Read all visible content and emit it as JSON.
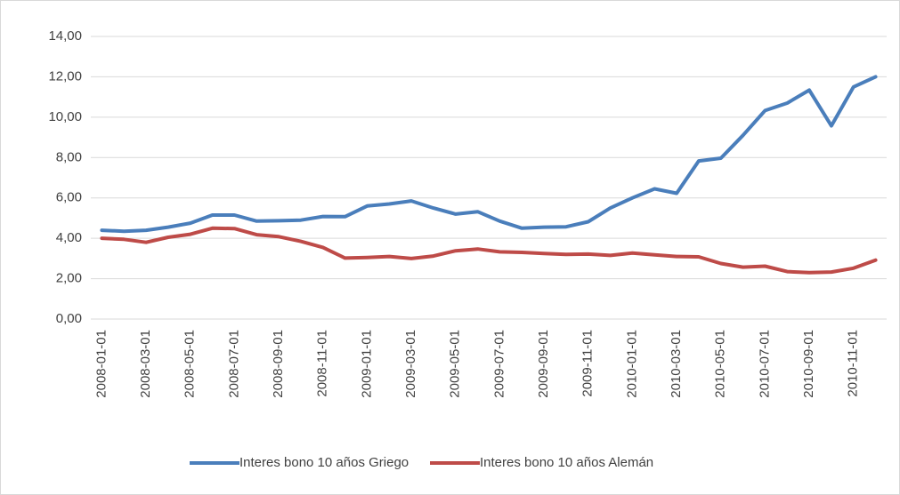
{
  "chart_data": {
    "type": "line",
    "categories": [
      "2008-01-01",
      null,
      "2008-03-01",
      null,
      "2008-05-01",
      null,
      "2008-07-01",
      null,
      "2008-09-01",
      null,
      "2008-11-01",
      null,
      "2009-01-01",
      null,
      "2009-03-01",
      null,
      "2009-05-01",
      null,
      "2009-07-01",
      null,
      "2009-09-01",
      null,
      "2009-11-01",
      null,
      "2010-01-01",
      null,
      "2010-03-01",
      null,
      "2010-05-01",
      null,
      "2010-07-01",
      null,
      "2010-09-01",
      null,
      "2010-11-01",
      null
    ],
    "series": [
      {
        "name": "Interes bono 10 años Griego",
        "color": "#4a7ebb",
        "values": [
          4.4,
          4.35,
          4.4,
          4.55,
          4.75,
          5.15,
          5.15,
          4.85,
          4.87,
          4.9,
          5.08,
          5.07,
          5.6,
          5.7,
          5.85,
          5.5,
          5.2,
          5.32,
          4.85,
          4.5,
          4.55,
          4.57,
          4.82,
          5.5,
          6.0,
          6.45,
          6.23,
          7.83,
          7.97,
          9.1,
          10.33,
          10.7,
          11.34,
          9.57,
          11.5,
          12.0
        ]
      },
      {
        "name": "Interes bono 10 años Alemán",
        "color": "#be4b48",
        "values": [
          4.0,
          3.95,
          3.8,
          4.05,
          4.2,
          4.5,
          4.48,
          4.18,
          4.08,
          3.85,
          3.55,
          3.02,
          3.05,
          3.1,
          3.0,
          3.12,
          3.38,
          3.47,
          3.33,
          3.3,
          3.25,
          3.2,
          3.22,
          3.15,
          3.27,
          3.18,
          3.1,
          3.08,
          2.75,
          2.57,
          2.62,
          2.35,
          2.3,
          2.33,
          2.52,
          2.92
        ]
      }
    ],
    "ylim": [
      0,
      14
    ],
    "yticks": [
      {
        "value": 0,
        "label": "0,00"
      },
      {
        "value": 2,
        "label": "2,00"
      },
      {
        "value": 4,
        "label": "4,00"
      },
      {
        "value": 6,
        "label": "6,00"
      },
      {
        "value": 8,
        "label": "8,00"
      },
      {
        "value": 10,
        "label": "10,00"
      },
      {
        "value": 12,
        "label": "12,00"
      },
      {
        "value": 14,
        "label": "14,00"
      }
    ],
    "grid": true,
    "legend": "bottom"
  }
}
